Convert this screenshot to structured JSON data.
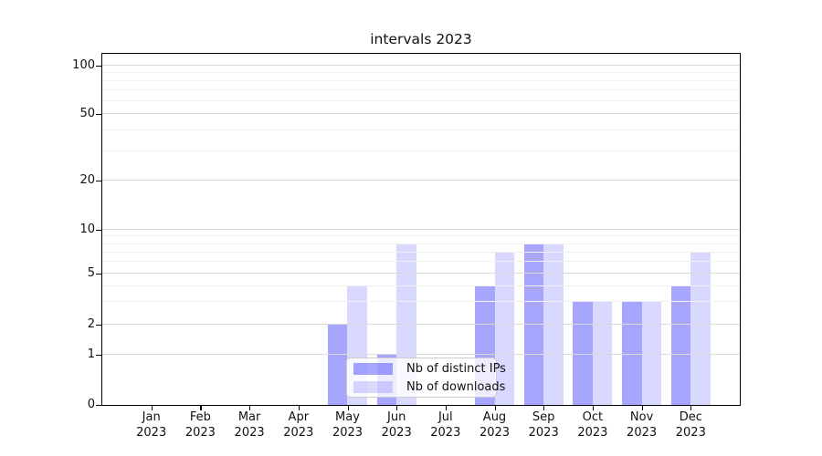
{
  "chart_data": {
    "type": "bar",
    "title": "intervals 2023",
    "categories": [
      "Jan 2023",
      "Feb 2023",
      "Mar 2023",
      "Apr 2023",
      "May 2023",
      "Jun 2023",
      "Jul 2023",
      "Aug 2023",
      "Sep 2023",
      "Oct 2023",
      "Nov 2023",
      "Dec 2023"
    ],
    "series": [
      {
        "name": "Nb of distinct IPs",
        "color": "rgba(0,0,255,0.35)",
        "values": [
          0,
          0,
          0,
          0,
          2,
          1,
          0,
          4,
          8,
          3,
          3,
          4
        ]
      },
      {
        "name": "Nb of downloads",
        "color": "rgba(0,0,255,0.15)",
        "values": [
          0,
          0,
          0,
          0,
          4,
          8,
          0,
          7,
          8,
          3,
          3,
          7
        ]
      }
    ],
    "y_axis": {
      "scale": "symlog",
      "ticks": [
        0,
        1,
        2,
        5,
        10,
        20,
        50,
        100
      ],
      "minor_ticks": [
        3,
        4,
        6,
        7,
        8,
        9,
        30,
        40,
        60,
        70,
        80,
        90
      ],
      "ylim": [
        0,
        118
      ]
    },
    "x_axis": {
      "tick_label_lines": 2
    },
    "grid": "horizontal major and minor, light gray, drawn over bars",
    "legend": {
      "position": "lower center-left inside plot",
      "items": [
        "Nb of distinct IPs",
        "Nb of downloads"
      ]
    }
  },
  "colors": {
    "bar_distinct_ips": "rgba(0,0,255,0.35)",
    "bar_downloads": "rgba(0,0,255,0.15)",
    "grid_major": "#d9d9d9",
    "grid_minor": "#f0f0f0",
    "spine": "#000000",
    "legend_border": "#cccccc"
  }
}
